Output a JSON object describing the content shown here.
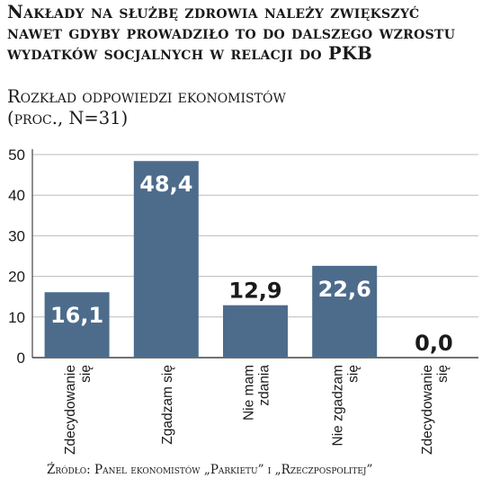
{
  "title": "Nakłady na służbę zdrowia należy zwiększyć nawet gdyby prowadziło to do dalszego wzrostu wydatków socjalnych w relacji do PKB",
  "subtitle_line1": "Rozkład odpowiedzi ekonomistów",
  "subtitle_line2": "(proc., N=31)",
  "source": "Źródło: Panel ekonomistów „Parkietu” i „Rzeczpospolitej”",
  "colors": {
    "bar": "#4d6c8c",
    "grid": "#bbbbbb",
    "axis": "#444444",
    "text": "#1a1a1a"
  },
  "chart_data": {
    "type": "bar",
    "categories": [
      [
        "Zdecydowanie",
        "się"
      ],
      [
        "Zgadzam się"
      ],
      [
        "Nie mam",
        "zdania"
      ],
      [
        "Nie zgadzam",
        "się"
      ],
      [
        "Zdecydowanie",
        "się"
      ]
    ],
    "values": [
      16.1,
      48.4,
      12.9,
      22.6,
      0.0
    ],
    "value_labels": [
      "16,1",
      "48,4",
      "12,9",
      "22,6",
      "0,0"
    ],
    "yticks": [
      0,
      10,
      20,
      30,
      40,
      50
    ],
    "ylim": [
      0,
      50
    ],
    "grid": true,
    "title": "Nakłady na służbę zdrowia należy zwiększyć nawet gdyby prowadziło to do dalszego wzrostu wydatków socjalnych w relacji do PKB",
    "xlabel": "",
    "ylabel": ""
  }
}
